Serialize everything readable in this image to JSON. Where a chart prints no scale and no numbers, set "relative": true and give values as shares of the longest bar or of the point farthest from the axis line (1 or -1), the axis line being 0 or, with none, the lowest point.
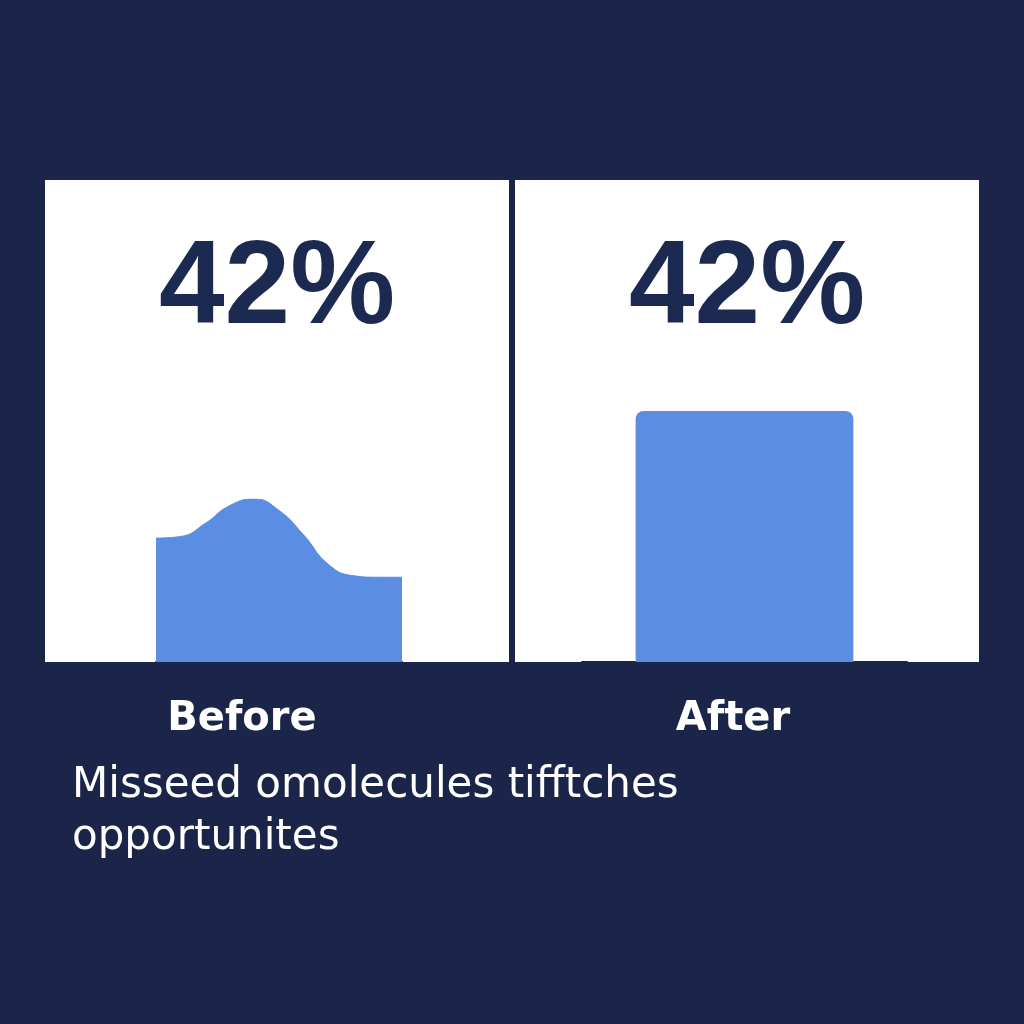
{
  "chart_data": [
    {
      "type": "area",
      "title": "42%",
      "xlabel": "Before",
      "categories": [
        null,
        null,
        null,
        null,
        null,
        null,
        null,
        null,
        null,
        null,
        null
      ],
      "values": [
        0.76,
        0.77,
        0.85,
        0.96,
        1,
        0.93,
        0.78,
        0.6,
        0.53,
        0.52,
        0.52
      ],
      "color": "#5b8de3",
      "relative": true,
      "annotations": [
        "Misseed omolecules tifftches opportunites"
      ]
    },
    {
      "type": "bar",
      "title": "42%",
      "xlabel": "After",
      "categories": [
        null
      ],
      "values": [
        1
      ],
      "color": "#5b8de3",
      "relative": true
    }
  ]
}
